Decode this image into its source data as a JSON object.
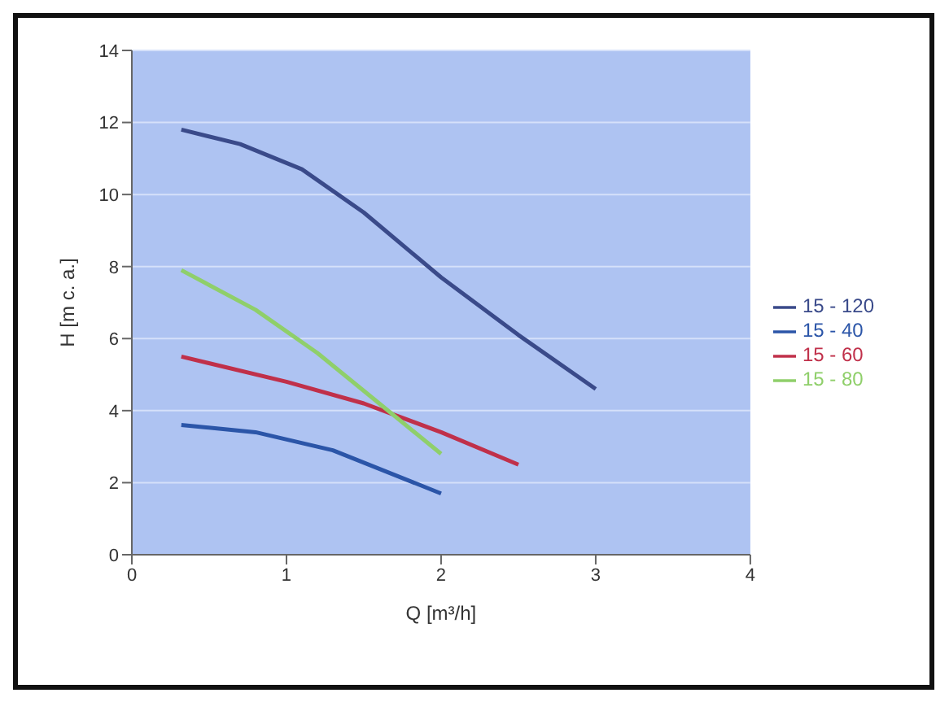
{
  "chart_data": {
    "type": "line",
    "xlabel": "Q [m³/h]",
    "ylabel": "H [m c. a.]",
    "xlim": [
      0,
      4
    ],
    "xticks": [
      0,
      1,
      2,
      3,
      4
    ],
    "ylim": [
      0,
      14
    ],
    "yticks": [
      0,
      2,
      4,
      6,
      8,
      10,
      12,
      14
    ],
    "grid": "y",
    "legend": "right",
    "marker": "none",
    "line_style": "solid",
    "series": [
      {
        "name": "15 - 40",
        "color": "#2b55a8",
        "x": [
          0.32,
          0.8,
          1.3,
          2.0
        ],
        "values": [
          3.6,
          3.4,
          2.9,
          1.7
        ]
      },
      {
        "name": "15 - 60",
        "color": "#c0304a",
        "x": [
          0.32,
          1,
          1.5,
          2,
          2.5
        ],
        "values": [
          5.5,
          4.8,
          4.2,
          3.4,
          2.5
        ]
      },
      {
        "name": "15 - 80",
        "color": "#8fcf6a",
        "x": [
          0.32,
          0.8,
          1.2,
          1.6,
          2.0
        ],
        "values": [
          7.9,
          6.8,
          5.6,
          4.2,
          2.8
        ]
      },
      {
        "name": "15 - 120",
        "color": "#3a4a8a",
        "x": [
          0.32,
          0.7,
          1.1,
          1.5,
          2.0,
          2.5,
          3.0
        ],
        "values": [
          11.8,
          11.4,
          10.7,
          9.5,
          7.7,
          6.1,
          4.6
        ]
      }
    ]
  }
}
